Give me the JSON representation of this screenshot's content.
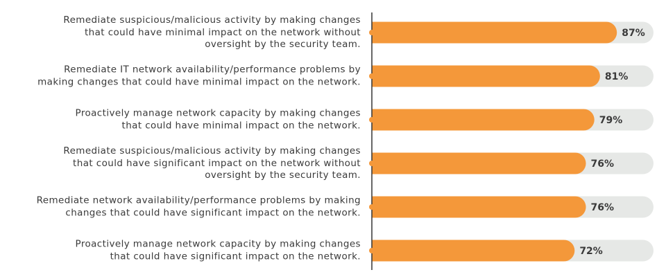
{
  "chart_data": {
    "type": "bar",
    "orientation": "horizontal",
    "categories": [
      "Remediate suspicious/malicious activity by making changes\nthat could have minimal impact on the network without\noversight by the security team.",
      "Remediate IT network availability/performance problems by\nmaking changes that could have minimal impact on the network.",
      "Proactively manage network capacity by making changes\nthat could have minimal impact on the network.",
      "Remediate suspicious/malicious activity by making changes\nthat could have significant impact on the network without\noversight by the security team.",
      "Remediate network availability/performance problems by making\nchanges that could have significant impact on the network.",
      "Proactively manage network capacity by making changes\nthat could have significant impact on the network."
    ],
    "values": [
      87,
      81,
      79,
      76,
      76,
      72
    ],
    "value_labels": [
      "87%",
      "81%",
      "79%",
      "76%",
      "76%",
      "72%"
    ],
    "color": "#f4983a",
    "track_color": "#e6e8e6",
    "xlim": [
      0,
      100
    ]
  }
}
